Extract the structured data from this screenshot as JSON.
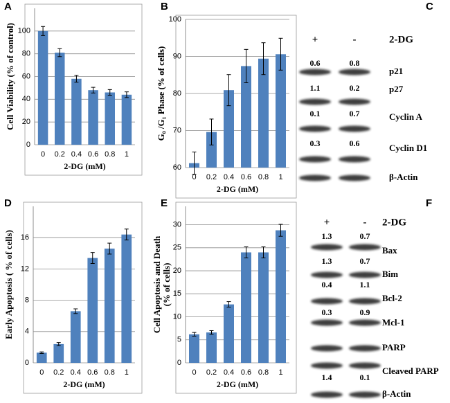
{
  "chart_data": [
    {
      "type": "bar",
      "label": "A",
      "ylabel": [
        "Cell Viability (% of control)"
      ],
      "xlabel": "2-DG (mM)",
      "categories": [
        "0",
        "0.2",
        "0.4",
        "0.6",
        "0.8",
        "1"
      ],
      "values": [
        100,
        81,
        58,
        48,
        46,
        44
      ],
      "errors": [
        4,
        3.5,
        3,
        2.5,
        2.5,
        2.5
      ],
      "color": "#4f81bd",
      "ylim": [
        0,
        120
      ],
      "yticks": [
        0,
        20,
        40,
        60,
        80,
        100
      ],
      "grid": true
    },
    {
      "type": "bar",
      "label": "B",
      "ylabel": [
        "G₀ /G₁ Phase (% of  cells)"
      ],
      "xlabel": "2-DG (mM)",
      "categories": [
        "0",
        "0.2",
        "0.4",
        "0.6",
        "0.8",
        "1"
      ],
      "values": [
        61.2,
        69.6,
        80.9,
        87.4,
        89.4,
        90.6
      ],
      "errors": [
        3,
        3.5,
        4.2,
        4.5,
        4.3,
        4.3
      ],
      "color": "#4f81bd",
      "ylim": [
        60,
        100
      ],
      "yticks": [
        60,
        70,
        80,
        90,
        100
      ],
      "grid": true
    },
    {
      "type": "bar",
      "label": "D",
      "ylabel": [
        "Early Apoptosis ( % of cells)"
      ],
      "xlabel": "2-DG (mM)",
      "categories": [
        "0",
        "0.2",
        "0.4",
        "0.6",
        "0.8",
        "1"
      ],
      "values": [
        1.3,
        2.4,
        6.6,
        13.4,
        14.6,
        16.4
      ],
      "errors": [
        0.1,
        0.2,
        0.3,
        0.7,
        0.7,
        0.7
      ],
      "color": "#4f81bd",
      "ylim": [
        0,
        20
      ],
      "yticks": [
        0,
        4,
        8,
        12,
        16
      ],
      "grid": true
    },
    {
      "type": "bar",
      "label": "E",
      "ylabel": [
        "Cell Apoptosis and Death",
        "(% of cells)"
      ],
      "xlabel": "2-DG (mM)",
      "categories": [
        "0",
        "0.2",
        "0.4",
        "0.6",
        "0.8",
        "1"
      ],
      "values": [
        6.2,
        6.6,
        12.7,
        24,
        24,
        28.8
      ],
      "errors": [
        0.4,
        0.4,
        0.6,
        1.2,
        1.2,
        1.3
      ],
      "color": "#4f81bd",
      "ylim": [
        0,
        34
      ],
      "yticks": [
        0,
        5,
        10,
        15,
        20,
        25,
        30
      ],
      "grid": true
    }
  ],
  "blots": [
    {
      "label": "C",
      "header": [
        "+",
        "-",
        "2-DG"
      ],
      "rows": [
        {
          "name": "p21",
          "quant": [
            "0.6",
            "0.8"
          ]
        },
        {
          "name": "p27",
          "quant": [
            "1.1",
            "0.2"
          ]
        },
        {
          "name": "Cyclin A",
          "quant": [
            "0.1",
            "0.7"
          ]
        },
        {
          "name": "Cyclin D1",
          "quant": [
            "0.3",
            "0.6"
          ]
        },
        {
          "name": "β-Actin"
        }
      ]
    },
    {
      "label": "F",
      "header": [
        "+",
        "-",
        "2-DG"
      ],
      "rows": [
        {
          "name": "Bax",
          "quant": [
            "1.3",
            "0.7"
          ]
        },
        {
          "name": "Bim",
          "quant": [
            "1.3",
            "0.7"
          ]
        },
        {
          "name": "Bcl-2",
          "quant": [
            "0.4",
            "1.1"
          ]
        },
        {
          "name": "Mcl-1",
          "quant": [
            "0.3",
            "0.9"
          ]
        },
        {
          "name": "PARP"
        },
        {
          "name": "Cleaved PARP",
          "quant": [
            "1.4",
            "0.1"
          ]
        },
        {
          "name": "β-Actin"
        }
      ]
    }
  ]
}
